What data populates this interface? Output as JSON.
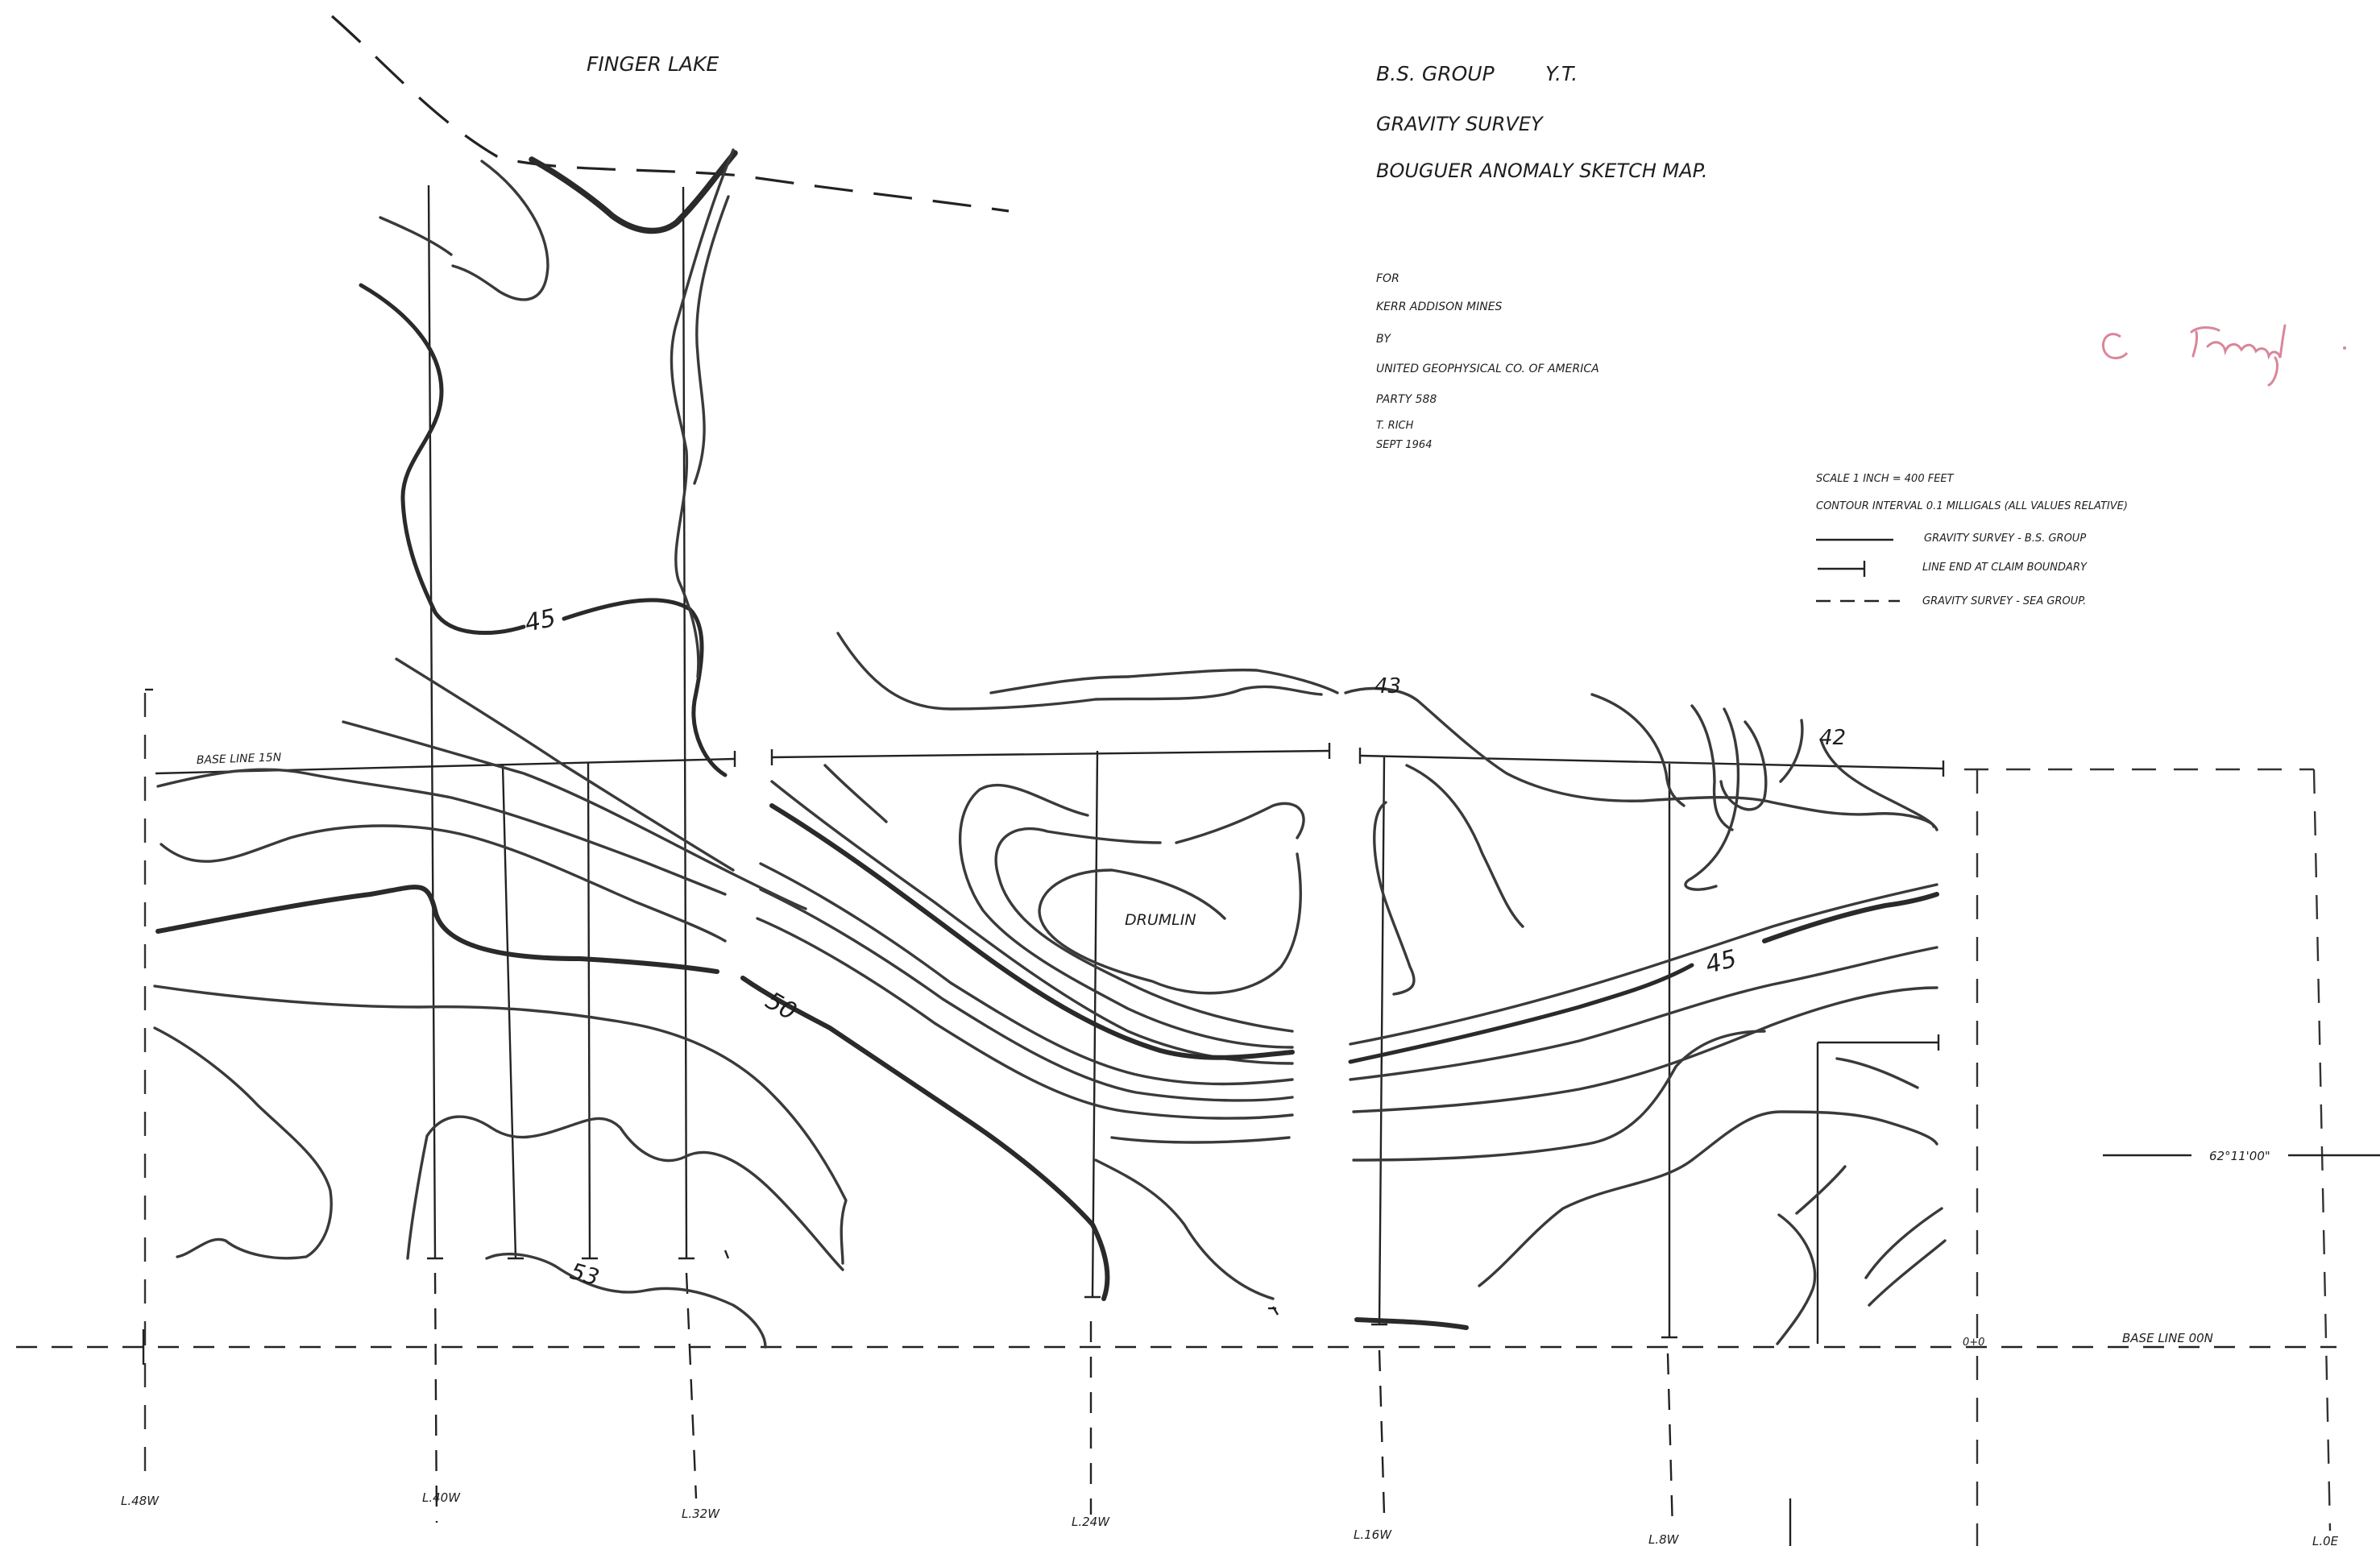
{
  "title": {
    "group": "B.S. GROUP",
    "territory": "Y.T.",
    "survey": "GRAVITY SURVEY",
    "map_type": "BOUGUER ANOMALY SKETCH MAP."
  },
  "lake_label": "FINGER LAKE",
  "credits": {
    "for_label": "FOR",
    "client": "KERR ADDISON MINES",
    "by_label": "BY",
    "contractor": "UNITED GEOPHYSICAL CO. OF AMERICA",
    "party": "PARTY 588",
    "author": "T. RICH",
    "date": "SEPT 1964"
  },
  "signature_text": "C. Farmaly.",
  "legend": {
    "scale": "SCALE  1 INCH = 400 FEET",
    "contour_interval": "CONTOUR INTERVAL  0.1 MILLIGALS  (ALL VALUES RELATIVE)",
    "items": [
      {
        "label": "GRAVITY SURVEY - B.S. GROUP",
        "symbol": "solid-line"
      },
      {
        "label": "LINE END AT CLAIM BOUNDARY",
        "symbol": "end-tick-line"
      },
      {
        "label": "GRAVITY SURVEY - SEA GROUP.",
        "symbol": "dashed-line"
      }
    ]
  },
  "base_lines": {
    "north": "BASE LINE 15N",
    "south": "BASE LINE 00N",
    "origin": "0+0"
  },
  "latitude": "62°11'00\"",
  "contour_labels": [
    "45",
    "50",
    "53",
    "43",
    "42",
    "45"
  ],
  "feature_label": "DRUMLIN",
  "survey_lines": [
    "L.48W",
    "L.40W",
    "L.32W",
    "L.24W",
    "L.16W",
    "L.8W",
    "L.0E"
  ],
  "colors": {
    "ink": "#222222",
    "contour": "#3a3a3a",
    "signature": "#d9869a",
    "paper": "#ffffff"
  }
}
